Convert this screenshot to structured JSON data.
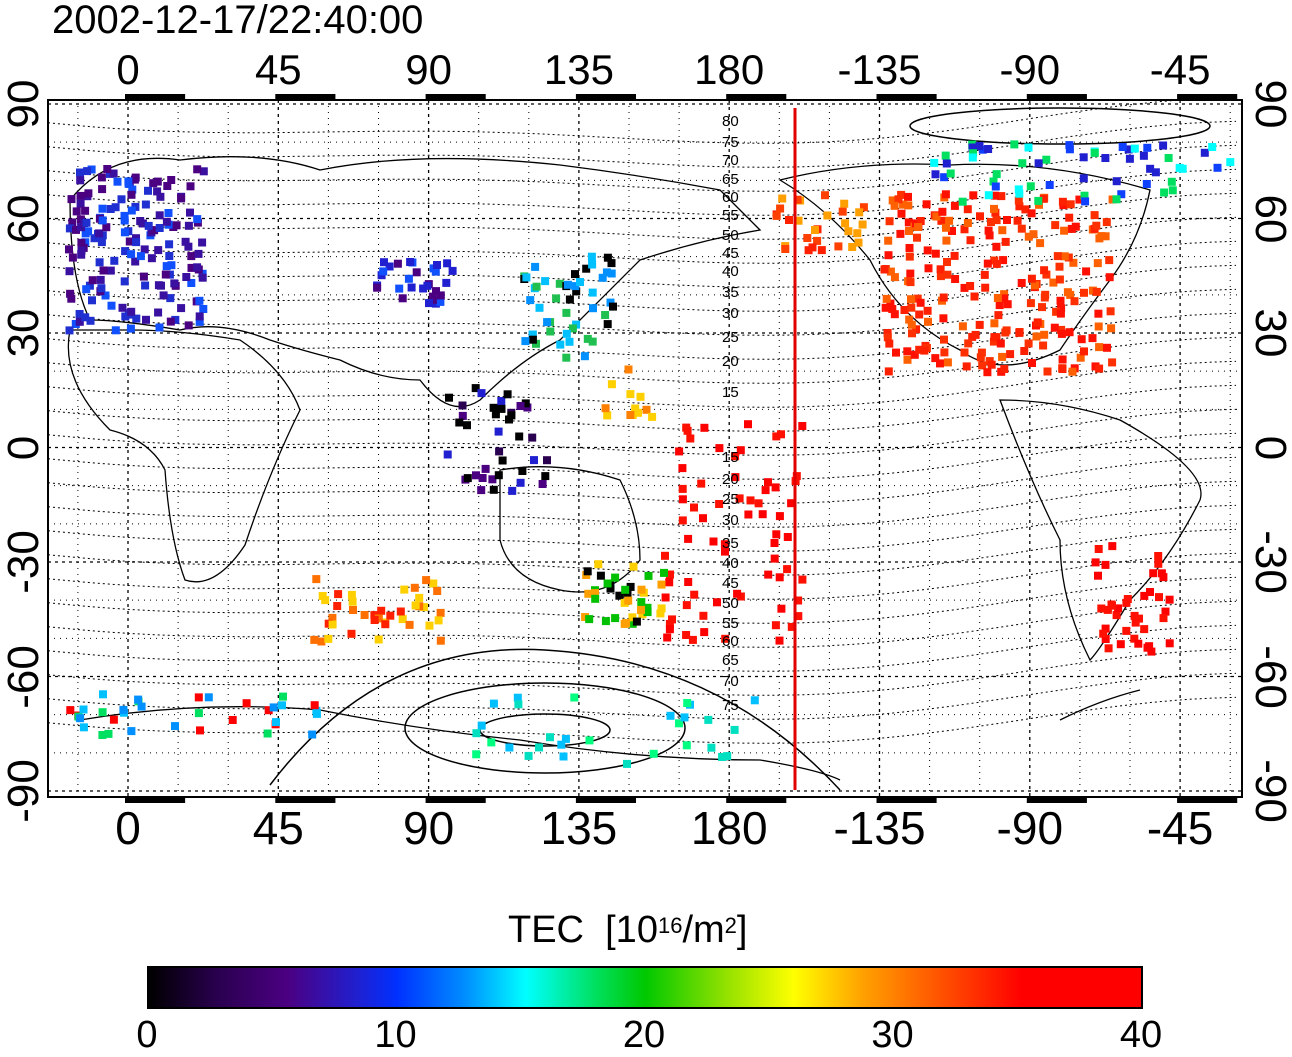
{
  "title": "2002-12-17/22:40:00",
  "map": {
    "projection": "equirectangular",
    "lon_center": 180,
    "lat_range": [
      -90,
      90
    ],
    "x_ticks": [
      "0",
      "45",
      "90",
      "135",
      "180",
      "-135",
      "-90",
      "-45"
    ],
    "y_ticks_left": [
      "90",
      "60",
      "30",
      "0",
      "-30",
      "-60",
      "-90"
    ],
    "y_ticks_right": [
      "90",
      "60",
      "30",
      "0",
      "-30",
      "-60",
      "-90"
    ],
    "terminator_longitude": -159,
    "terminator_color": "#e00000",
    "contour_labels": [
      "80",
      "75",
      "70",
      "65",
      "60",
      "55",
      "50",
      "45",
      "40",
      "35",
      "30",
      "25",
      "20",
      "15",
      "15",
      "20",
      "25",
      "30",
      "35",
      "40",
      "45",
      "50",
      "55",
      "60",
      "65",
      "70",
      "75"
    ],
    "grid": "dotted"
  },
  "colorbar": {
    "label": "TEC",
    "unit_prefix": "[10",
    "unit_exp": "16",
    "unit_mid": "/m",
    "unit_exp2": "2",
    "unit_suffix": "]",
    "ticks": [
      "0",
      "10",
      "20",
      "30",
      "40"
    ],
    "range": [
      0,
      40
    ]
  }
}
